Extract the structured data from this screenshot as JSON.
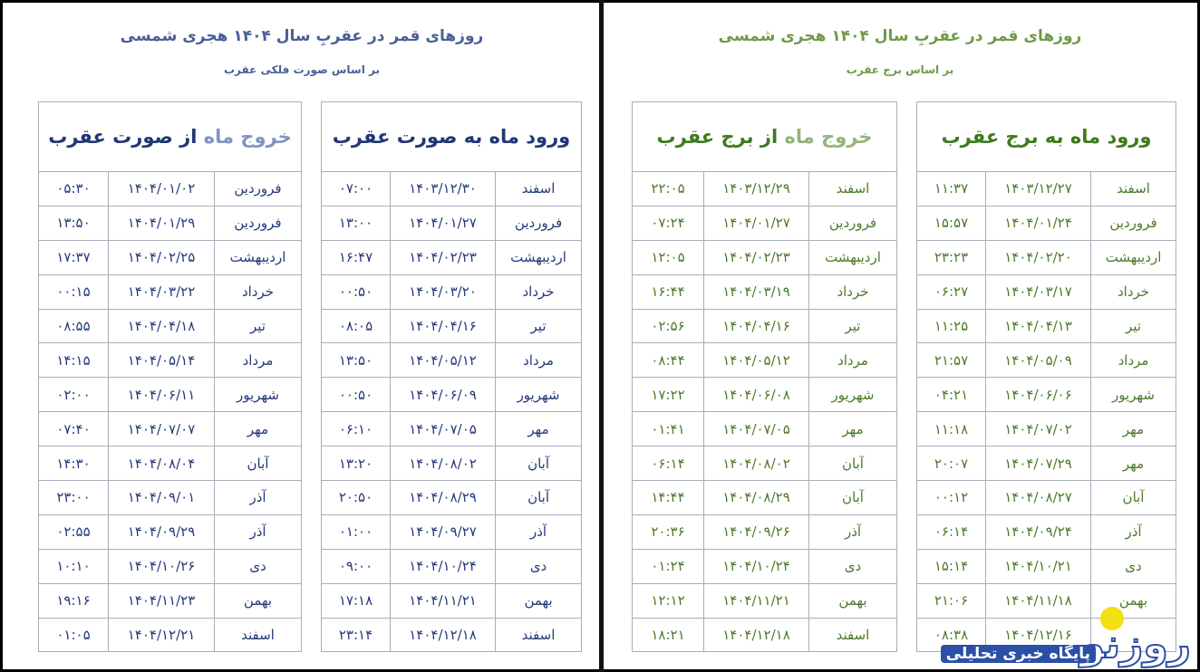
{
  "colors": {
    "left_accent": "#263a7a",
    "right_accent": "#4d7a2c",
    "logo_dot": "#f3df12"
  },
  "left": {
    "title": "روزهای قمر در عقربِ سال ۱۴۰۴ هجری شمسی",
    "subtitle": "بر اساس صورت فلکی عقرب",
    "entry_header": {
      "part1": "ورود ماه",
      "part2": " به صورت عقرب"
    },
    "exit_header": {
      "part1": "خروج ماه",
      "part2": " از صورت عقرب"
    },
    "entry_rows": [
      {
        "month": "اسفند",
        "date": "۱۴۰۳/۱۲/۳۰",
        "time": "۰۷:۰۰"
      },
      {
        "month": "فروردین",
        "date": "۱۴۰۴/۰۱/۲۷",
        "time": "۱۳:۰۰"
      },
      {
        "month": "اردیبهشت",
        "date": "۱۴۰۴/۰۲/۲۳",
        "time": "۱۶:۴۷"
      },
      {
        "month": "خرداد",
        "date": "۱۴۰۴/۰۳/۲۰",
        "time": "۰۰:۵۰"
      },
      {
        "month": "تیر",
        "date": "۱۴۰۴/۰۴/۱۶",
        "time": "۰۸:۰۵"
      },
      {
        "month": "مرداد",
        "date": "۱۴۰۴/۰۵/۱۲",
        "time": "۱۳:۵۰"
      },
      {
        "month": "شهریور",
        "date": "۱۴۰۴/۰۶/۰۹",
        "time": "۰۰:۵۰"
      },
      {
        "month": "مهر",
        "date": "۱۴۰۴/۰۷/۰۵",
        "time": "۰۶:۱۰"
      },
      {
        "month": "آبان",
        "date": "۱۴۰۴/۰۸/۰۲",
        "time": "۱۳:۲۰"
      },
      {
        "month": "آبان",
        "date": "۱۴۰۴/۰۸/۲۹",
        "time": "۲۰:۵۰"
      },
      {
        "month": "آذر",
        "date": "۱۴۰۴/۰۹/۲۷",
        "time": "۰۱:۰۰"
      },
      {
        "month": "دی",
        "date": "۱۴۰۴/۱۰/۲۴",
        "time": "۰۹:۰۰"
      },
      {
        "month": "بهمن",
        "date": "۱۴۰۴/۱۱/۲۱",
        "time": "۱۷:۱۸"
      },
      {
        "month": "اسفند",
        "date": "۱۴۰۴/۱۲/۱۸",
        "time": "۲۳:۱۴"
      }
    ],
    "exit_rows": [
      {
        "month": "فروردین",
        "date": "۱۴۰۴/۰۱/۰۲",
        "time": "۰۵:۳۰"
      },
      {
        "month": "فروردین",
        "date": "۱۴۰۴/۰۱/۲۹",
        "time": "۱۳:۵۰"
      },
      {
        "month": "اردیبهشت",
        "date": "۱۴۰۴/۰۲/۲۵",
        "time": "۱۷:۳۷"
      },
      {
        "month": "خرداد",
        "date": "۱۴۰۴/۰۳/۲۲",
        "time": "۰۰:۱۵"
      },
      {
        "month": "تیر",
        "date": "۱۴۰۴/۰۴/۱۸",
        "time": "۰۸:۵۵"
      },
      {
        "month": "مرداد",
        "date": "۱۴۰۴/۰۵/۱۴",
        "time": "۱۴:۱۵"
      },
      {
        "month": "شهریور",
        "date": "۱۴۰۴/۰۶/۱۱",
        "time": "۰۲:۰۰"
      },
      {
        "month": "مهر",
        "date": "۱۴۰۴/۰۷/۰۷",
        "time": "۰۷:۴۰"
      },
      {
        "month": "آبان",
        "date": "۱۴۰۴/۰۸/۰۴",
        "time": "۱۴:۳۰"
      },
      {
        "month": "آذر",
        "date": "۱۴۰۴/۰۹/۰۱",
        "time": "۲۳:۰۰"
      },
      {
        "month": "آذر",
        "date": "۱۴۰۴/۰۹/۲۹",
        "time": "۰۲:۵۵"
      },
      {
        "month": "دی",
        "date": "۱۴۰۴/۱۰/۲۶",
        "time": "۱۰:۱۰"
      },
      {
        "month": "بهمن",
        "date": "۱۴۰۴/۱۱/۲۳",
        "time": "۱۹:۱۶"
      },
      {
        "month": "اسفند",
        "date": "۱۴۰۴/۱۲/۲۱",
        "time": "۰۱:۰۵"
      }
    ]
  },
  "right": {
    "title": "روزهای قمر در عقربِ سال ۱۴۰۴ هجری شمسی",
    "subtitle": "بر اساس برج عقرب",
    "entry_header": {
      "part1": "ورود ماه",
      "part2": " به برج عقرب"
    },
    "exit_header": {
      "part1": "خروج ماه",
      "part2": " از برج عقرب"
    },
    "entry_rows": [
      {
        "month": "اسفند",
        "date": "۱۴۰۳/۱۲/۲۷",
        "time": "۱۱:۳۷"
      },
      {
        "month": "فروردین",
        "date": "۱۴۰۴/۰۱/۲۴",
        "time": "۱۵:۵۷"
      },
      {
        "month": "اردیبهشت",
        "date": "۱۴۰۴/۰۲/۲۰",
        "time": "۲۳:۲۳"
      },
      {
        "month": "خرداد",
        "date": "۱۴۰۴/۰۳/۱۷",
        "time": "۰۶:۲۷"
      },
      {
        "month": "تیر",
        "date": "۱۴۰۴/۰۴/۱۳",
        "time": "۱۱:۲۵"
      },
      {
        "month": "مرداد",
        "date": "۱۴۰۴/۰۵/۰۹",
        "time": "۲۱:۵۷"
      },
      {
        "month": "شهریور",
        "date": "۱۴۰۴/۰۶/۰۶",
        "time": "۰۴:۲۱"
      },
      {
        "month": "مهر",
        "date": "۱۴۰۴/۰۷/۰۲",
        "time": "۱۱:۱۸"
      },
      {
        "month": "مهر",
        "date": "۱۴۰۴/۰۷/۲۹",
        "time": "۲۰:۰۷"
      },
      {
        "month": "آبان",
        "date": "۱۴۰۴/۰۸/۲۷",
        "time": "۰۰:۱۲"
      },
      {
        "month": "آذر",
        "date": "۱۴۰۴/۰۹/۲۴",
        "time": "۰۶:۱۴"
      },
      {
        "month": "دی",
        "date": "۱۴۰۴/۱۰/۲۱",
        "time": "۱۵:۱۴"
      },
      {
        "month": "بهمن",
        "date": "۱۴۰۴/۱۱/۱۸",
        "time": "۲۱:۰۶"
      },
      {
        "month": "",
        "date": "۱۴۰۴/۱۲/۱۶",
        "time": "۰۸:۳۸"
      }
    ],
    "exit_rows": [
      {
        "month": "اسفند",
        "date": "۱۴۰۳/۱۲/۲۹",
        "time": "۲۲:۰۵"
      },
      {
        "month": "فروردین",
        "date": "۱۴۰۴/۰۱/۲۷",
        "time": "۰۷:۲۴"
      },
      {
        "month": "اردیبهشت",
        "date": "۱۴۰۴/۰۲/۲۳",
        "time": "۱۲:۰۵"
      },
      {
        "month": "خرداد",
        "date": "۱۴۰۴/۰۳/۱۹",
        "time": "۱۶:۴۴"
      },
      {
        "month": "تیر",
        "date": "۱۴۰۴/۰۴/۱۶",
        "time": "۰۲:۵۶"
      },
      {
        "month": "مرداد",
        "date": "۱۴۰۴/۰۵/۱۲",
        "time": "۰۸:۴۴"
      },
      {
        "month": "شهریور",
        "date": "۱۴۰۴/۰۶/۰۸",
        "time": "۱۷:۲۲"
      },
      {
        "month": "مهر",
        "date": "۱۴۰۴/۰۷/۰۵",
        "time": "۰۱:۴۱"
      },
      {
        "month": "آبان",
        "date": "۱۴۰۴/۰۸/۰۲",
        "time": "۰۶:۱۴"
      },
      {
        "month": "آبان",
        "date": "۱۴۰۴/۰۸/۲۹",
        "time": "۱۴:۴۴"
      },
      {
        "month": "آذر",
        "date": "۱۴۰۴/۰۹/۲۶",
        "time": "۲۰:۳۶"
      },
      {
        "month": "دی",
        "date": "۱۴۰۴/۱۰/۲۴",
        "time": "۰۱:۲۴"
      },
      {
        "month": "بهمن",
        "date": "۱۴۰۴/۱۱/۲۱",
        "time": "۱۲:۱۲"
      },
      {
        "month": "اسفند",
        "date": "۱۴۰۴/۱۲/۱۸",
        "time": "۱۸:۲۱"
      }
    ]
  },
  "watermark": {
    "tagline": "پایگاه خبری تحلیلی",
    "logo_text": "روزنو"
  }
}
